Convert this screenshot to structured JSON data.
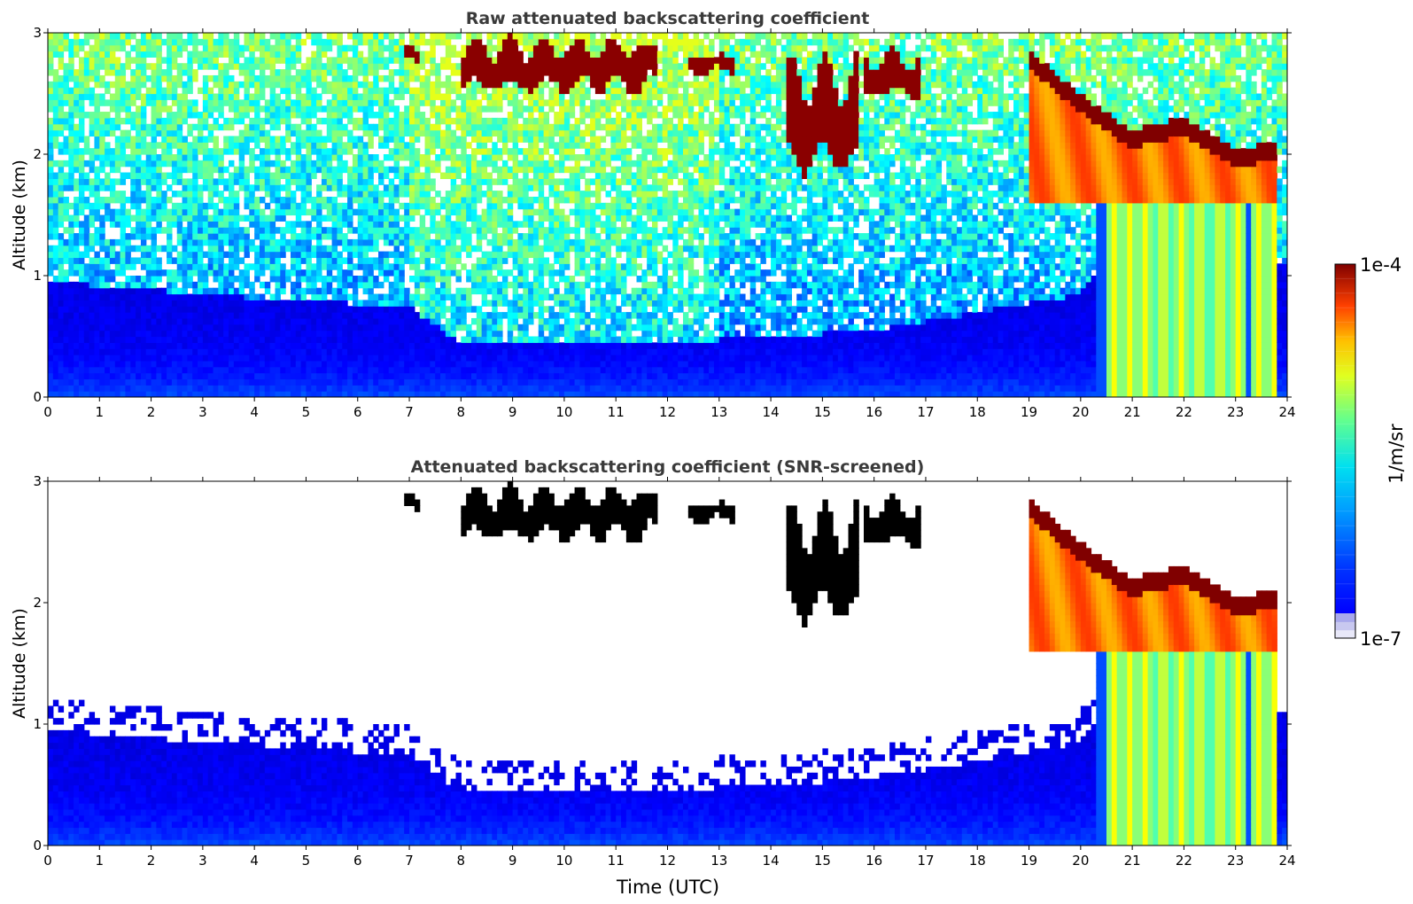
{
  "figure": {
    "xlabel": "Time (UTC)",
    "colorbar": {
      "max_label": "1e-4",
      "min_label": "1e-7",
      "unit_label": "1/m/sr",
      "vmin": 1e-07,
      "vmax": 0.0001,
      "scale": "log",
      "colormap": "jet",
      "low_end_colors": [
        "#e8e8f8",
        "#c8c8f0",
        "#a8a8ec"
      ]
    }
  },
  "chart_data": [
    {
      "type": "heatmap",
      "title": "Raw attenuated backscattering coefficient",
      "xlabel": "",
      "ylabel": "Altitude (km)",
      "xlim": [
        0,
        24
      ],
      "ylim": [
        0,
        3
      ],
      "xticks": [
        "0",
        "1",
        "2",
        "3",
        "4",
        "5",
        "6",
        "7",
        "8",
        "9",
        "10",
        "11",
        "12",
        "13",
        "14",
        "15",
        "16",
        "17",
        "18",
        "19",
        "20",
        "21",
        "22",
        "23",
        "24"
      ],
      "yticks": [
        "0",
        "1",
        "2",
        "3"
      ],
      "grid": false,
      "screened": false,
      "features": {
        "boundary_layer_top_km": [
          [
            0,
            0.95
          ],
          [
            4.6,
            0.8
          ],
          [
            7,
            0.75
          ],
          [
            8,
            0.45
          ],
          [
            12,
            0.45
          ],
          [
            16,
            0.55
          ],
          [
            20,
            0.85
          ],
          [
            20.5,
            1.1
          ]
        ],
        "cirrus_cloud_segments": [
          {
            "t0": 6.9,
            "t1": 7.2,
            "zmin": 2.75,
            "zmax": 2.9
          },
          {
            "t0": 8.0,
            "t1": 11.8,
            "zmin": 2.45,
            "zmax": 3.0
          },
          {
            "t0": 12.4,
            "t1": 13.3,
            "zmin": 2.65,
            "zmax": 2.85
          },
          {
            "t0": 14.3,
            "t1": 15.7,
            "zmin": 1.7,
            "zmax": 2.9
          },
          {
            "t0": 15.8,
            "t1": 16.9,
            "zmin": 2.4,
            "zmax": 2.9
          }
        ],
        "precipitating_cloud": {
          "t0": 19.0,
          "t1": 23.8,
          "top_km": [
            [
              19.0,
              2.85
            ],
            [
              20.0,
              2.5
            ],
            [
              21.0,
              2.2
            ],
            [
              22.0,
              2.3
            ],
            [
              23.0,
              2.05
            ],
            [
              23.8,
              2.1
            ]
          ],
          "base_km": 1.6
        },
        "virga_streaks_t": [
          20.65,
          20.95,
          21.25,
          21.6,
          21.95,
          22.3,
          22.7,
          23.05,
          23.45,
          23.75
        ]
      }
    },
    {
      "type": "heatmap",
      "title": "Attenuated backscattering coefficient (SNR-screened)",
      "xlabel": "Time (UTC)",
      "ylabel": "Altitude (km)",
      "xlim": [
        0,
        24
      ],
      "ylim": [
        0,
        3
      ],
      "xticks": [
        "0",
        "1",
        "2",
        "3",
        "4",
        "5",
        "6",
        "7",
        "8",
        "9",
        "10",
        "11",
        "12",
        "13",
        "14",
        "15",
        "16",
        "17",
        "18",
        "19",
        "20",
        "21",
        "22",
        "23",
        "24"
      ],
      "yticks": [
        "0",
        "1",
        "2",
        "3"
      ],
      "grid": false,
      "screened": true,
      "saturated_color": "#000000"
    }
  ]
}
